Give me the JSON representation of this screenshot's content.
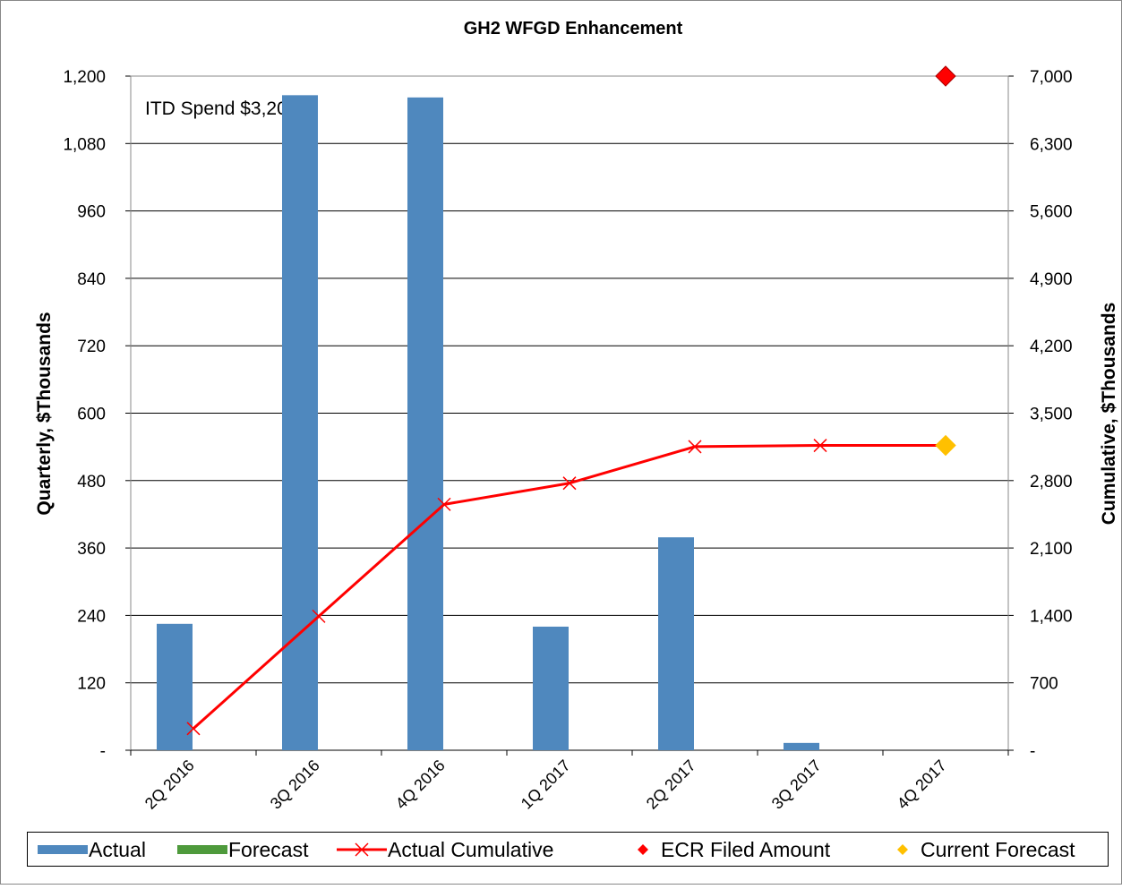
{
  "chart_data": {
    "type": "bar",
    "title": "GH2 WFGD Enhancement",
    "annotation": "ITD Spend  $3,200k",
    "y_label": "Quarterly, $Thousands",
    "y2_label": "Cumulative, $Thousands",
    "categories": [
      "2Q 2016",
      "3Q 2016",
      "4Q 2016",
      "1Q 2017",
      "2Q 2017",
      "3Q 2017",
      "4Q 2017"
    ],
    "series": [
      {
        "name": "Actual",
        "type": "bar",
        "color": "#4f88be",
        "values": [
          225,
          1166,
          1162,
          220,
          379,
          13,
          null
        ]
      },
      {
        "name": "Forecast",
        "type": "bar",
        "color": "#4e9a3c",
        "values": [
          null,
          null,
          null,
          null,
          null,
          null,
          null
        ]
      },
      {
        "name": "Actual Cumulative",
        "type": "line",
        "axis": "y2",
        "color": "#ff0000",
        "values": [
          225,
          1391,
          2553,
          2773,
          3152,
          3165,
          3165
        ]
      },
      {
        "name": "ECR Filed Amount",
        "type": "diamond",
        "axis": "y2",
        "color": "#ff0000",
        "values": [
          null,
          null,
          null,
          null,
          null,
          null,
          7000
        ]
      },
      {
        "name": "Current Forecast",
        "type": "diamond",
        "axis": "y2",
        "color": "#ffc000",
        "values": [
          null,
          null,
          null,
          null,
          null,
          null,
          3165
        ]
      }
    ],
    "ylim": [
      0,
      1200
    ],
    "yticks": [
      {
        "value": 0,
        "label": "-"
      },
      120,
      240,
      360,
      480,
      600,
      720,
      840,
      960,
      {
        "value": 1080,
        "label": "1,080"
      },
      {
        "value": 1200,
        "label": "1,200"
      }
    ],
    "y2lim": [
      0,
      7000
    ],
    "y2ticks": [
      {
        "value": 0,
        "label": "-"
      },
      700,
      {
        "value": 1400,
        "label": "1,400"
      },
      {
        "value": 2100,
        "label": "2,100"
      },
      {
        "value": 2800,
        "label": "2,800"
      },
      {
        "value": 3500,
        "label": "3,500"
      },
      {
        "value": 4200,
        "label": "4,200"
      },
      {
        "value": 4900,
        "label": "4,900"
      },
      {
        "value": 5600,
        "label": "5,600"
      },
      {
        "value": 6300,
        "label": "6,300"
      },
      {
        "value": 7000,
        "label": "7,000"
      }
    ],
    "grid": true,
    "legend": "bottom"
  }
}
